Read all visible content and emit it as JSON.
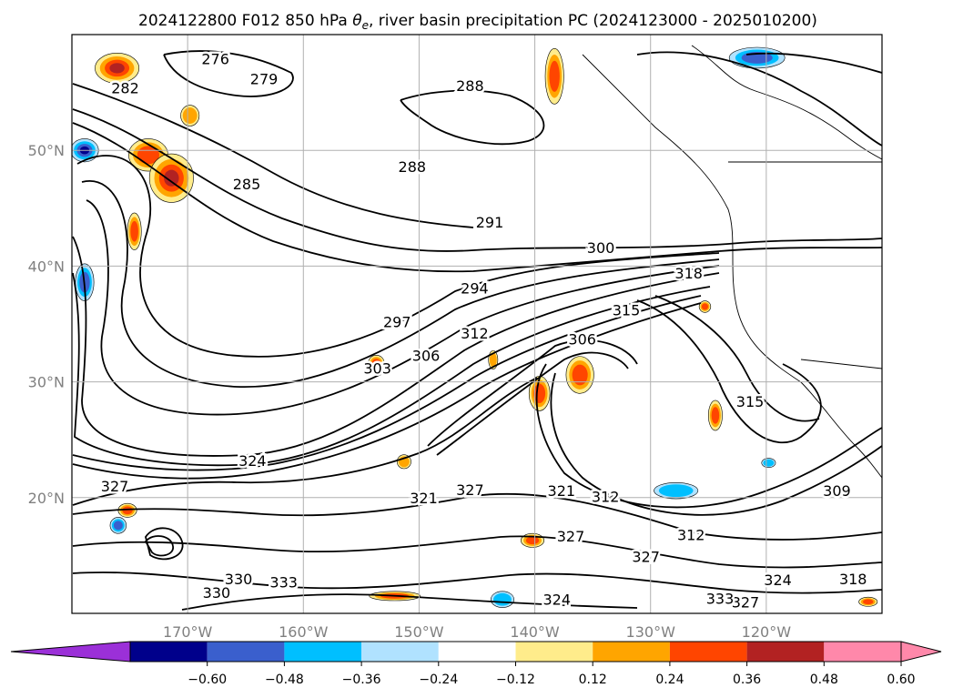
{
  "chart_data": {
    "type": "map-contour",
    "title": "2024122800 F012 850 hPa θe, river basin precipitation PC (2024123000 - 2025010200)",
    "title_parts": {
      "prefix": "2024122800 F012 850 hPa ",
      "var_symbol": "θ",
      "var_sub": "e",
      "suffix": ", river basin precipitation PC (2024123000 - 2025010200)"
    },
    "lon_range": [
      -180,
      -110
    ],
    "lat_range": [
      10,
      60
    ],
    "lon_ticks": [
      {
        "lon": -170,
        "label": "170°W"
      },
      {
        "lon": -160,
        "label": "160°W"
      },
      {
        "lon": -150,
        "label": "150°W"
      },
      {
        "lon": -140,
        "label": "140°W"
      },
      {
        "lon": -130,
        "label": "130°W"
      },
      {
        "lon": -120,
        "label": "120°W"
      }
    ],
    "lat_ticks": [
      {
        "lat": 20,
        "label": "20°N"
      },
      {
        "lat": 30,
        "label": "30°N"
      },
      {
        "lat": 40,
        "label": "40°N"
      },
      {
        "lat": 50,
        "label": "50°N"
      }
    ],
    "grid": true,
    "contour_levels": [
      276,
      279,
      282,
      285,
      288,
      291,
      294,
      297,
      300,
      303,
      306,
      309,
      312,
      315,
      318,
      321,
      324,
      327,
      330,
      333
    ],
    "contour_labels": [
      {
        "label": "276",
        "lon": -167.6,
        "lat": 57.9
      },
      {
        "label": "279",
        "lon": -163.4,
        "lat": 56.2
      },
      {
        "label": "282",
        "lon": -175.4,
        "lat": 55.4
      },
      {
        "label": "285",
        "lon": -164.9,
        "lat": 47.1
      },
      {
        "label": "288",
        "lon": -145.6,
        "lat": 55.6
      },
      {
        "label": "288",
        "lon": -150.6,
        "lat": 48.6
      },
      {
        "label": "291",
        "lon": -143.9,
        "lat": 43.8
      },
      {
        "label": "294",
        "lon": -145.2,
        "lat": 38.1
      },
      {
        "label": "297",
        "lon": -151.9,
        "lat": 35.2
      },
      {
        "label": "300",
        "lon": -134.3,
        "lat": 41.6
      },
      {
        "label": "303",
        "lon": -153.6,
        "lat": 31.2
      },
      {
        "label": "306",
        "lon": -149.4,
        "lat": 32.3
      },
      {
        "label": "306",
        "lon": -135.9,
        "lat": 33.7
      },
      {
        "label": "312",
        "lon": -145.2,
        "lat": 34.2
      },
      {
        "label": "315",
        "lon": -132.1,
        "lat": 36.2
      },
      {
        "label": "318",
        "lon": -126.7,
        "lat": 39.4
      },
      {
        "label": "315",
        "lon": -121.4,
        "lat": 28.3
      },
      {
        "label": "309",
        "lon": -113.9,
        "lat": 20.6
      },
      {
        "label": "312",
        "lon": -133.9,
        "lat": 20.1
      },
      {
        "label": "321",
        "lon": -137.7,
        "lat": 20.6
      },
      {
        "label": "321",
        "lon": -149.6,
        "lat": 20.0
      },
      {
        "label": "327",
        "lon": -145.6,
        "lat": 20.7
      },
      {
        "label": "324",
        "lon": -164.4,
        "lat": 23.2
      },
      {
        "label": "327",
        "lon": -176.3,
        "lat": 21.0
      },
      {
        "label": "312",
        "lon": -126.5,
        "lat": 16.8
      },
      {
        "label": "327",
        "lon": -130.4,
        "lat": 14.9
      },
      {
        "label": "327",
        "lon": -136.9,
        "lat": 16.7
      },
      {
        "label": "324",
        "lon": -119.0,
        "lat": 12.9
      },
      {
        "label": "318",
        "lon": -112.5,
        "lat": 13.0
      },
      {
        "label": "330",
        "lon": -165.6,
        "lat": 13.0
      },
      {
        "label": "333",
        "lon": -161.7,
        "lat": 12.7
      },
      {
        "label": "330",
        "lon": -167.5,
        "lat": 11.8
      },
      {
        "label": "324",
        "lon": -138.1,
        "lat": 11.2
      },
      {
        "label": "327",
        "lon": -121.8,
        "lat": 11.0
      },
      {
        "label": "333",
        "lon": -124.0,
        "lat": 11.3
      }
    ],
    "colorbar": {
      "ticks": [
        "−0.60",
        "−0.48",
        "−0.36",
        "−0.24",
        "−0.12",
        "0.12",
        "0.24",
        "0.36",
        "0.48",
        "0.60"
      ],
      "colors": [
        "#9b30d8",
        "#00008b",
        "#3a5fcd",
        "#00bfff",
        "#b0e2ff",
        "#ffffff",
        "#ffec8b",
        "#ffa500",
        "#ff4500",
        "#b22222",
        "#ff88aa",
        "#ff88aa"
      ],
      "extend": "both"
    },
    "precip_pc_features": [
      {
        "lon": -176.1,
        "lat": 57.1,
        "rx": 1.9,
        "ry": 1.3,
        "value": 0.5
      },
      {
        "lon": -169.8,
        "lat": 53.0,
        "rx": 0.8,
        "ry": 0.9,
        "value": 0.35
      },
      {
        "lon": -173.4,
        "lat": 49.6,
        "rx": 1.7,
        "ry": 1.4,
        "value": 0.45
      },
      {
        "lon": -171.4,
        "lat": 47.6,
        "rx": 1.9,
        "ry": 2.1,
        "value": 0.5
      },
      {
        "lon": -178.9,
        "lat": 50.0,
        "rx": 1.2,
        "ry": 1.0,
        "value": -0.55
      },
      {
        "lon": -178.9,
        "lat": 38.6,
        "rx": 0.8,
        "ry": 1.6,
        "value": -0.45
      },
      {
        "lon": -174.6,
        "lat": 43.0,
        "rx": 0.6,
        "ry": 1.6,
        "value": 0.4
      },
      {
        "lon": -138.3,
        "lat": 56.4,
        "rx": 0.8,
        "ry": 2.4,
        "value": 0.45
      },
      {
        "lon": -120.8,
        "lat": 58.0,
        "rx": 2.4,
        "ry": 0.9,
        "value": -0.45
      },
      {
        "lon": -136.1,
        "lat": 30.6,
        "rx": 1.2,
        "ry": 1.6,
        "value": 0.45
      },
      {
        "lon": -139.6,
        "lat": 29.0,
        "rx": 0.9,
        "ry": 1.5,
        "value": 0.4
      },
      {
        "lon": -153.7,
        "lat": 31.6,
        "rx": 0.7,
        "ry": 0.7,
        "value": 0.4
      },
      {
        "lon": -127.8,
        "lat": 20.6,
        "rx": 1.9,
        "ry": 0.7,
        "value": -0.3
      },
      {
        "lon": -124.4,
        "lat": 27.1,
        "rx": 0.6,
        "ry": 1.3,
        "value": 0.4
      },
      {
        "lon": -119.8,
        "lat": 23.0,
        "rx": 0.6,
        "ry": 0.4,
        "value": -0.3
      },
      {
        "lon": -143.6,
        "lat": 31.9,
        "rx": 0.4,
        "ry": 0.8,
        "value": 0.3
      },
      {
        "lon": -140.2,
        "lat": 16.3,
        "rx": 1.0,
        "ry": 0.6,
        "value": 0.4
      },
      {
        "lon": -142.8,
        "lat": 11.2,
        "rx": 1.0,
        "ry": 0.7,
        "value": -0.35
      },
      {
        "lon": -176.0,
        "lat": 17.6,
        "rx": 0.7,
        "ry": 0.7,
        "value": -0.45
      },
      {
        "lon": -175.2,
        "lat": 18.9,
        "rx": 0.8,
        "ry": 0.6,
        "value": 0.4
      },
      {
        "lon": -152.1,
        "lat": 11.5,
        "rx": 2.2,
        "ry": 0.4,
        "value": 0.4
      },
      {
        "lon": -151.3,
        "lat": 23.1,
        "rx": 0.6,
        "ry": 0.6,
        "value": 0.35
      },
      {
        "lon": -125.3,
        "lat": 36.5,
        "rx": 0.5,
        "ry": 0.5,
        "value": 0.4
      },
      {
        "lon": -111.2,
        "lat": 11.0,
        "rx": 0.8,
        "ry": 0.4,
        "value": 0.45
      }
    ],
    "colorbar_tick_values": [
      -0.6,
      -0.48,
      -0.36,
      -0.24,
      -0.12,
      0.12,
      0.24,
      0.36,
      0.48,
      0.6
    ]
  }
}
